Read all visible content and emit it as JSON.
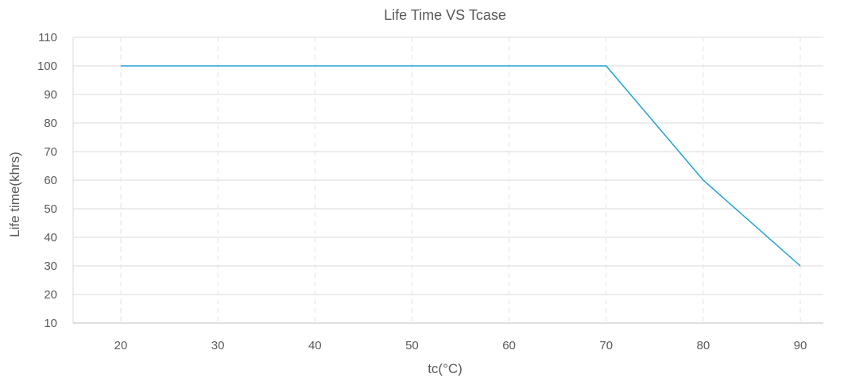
{
  "chart_data": {
    "type": "line",
    "title": "Life Time VS Tcase",
    "xlabel": "tc(°C)",
    "ylabel": "Life time(khrs)",
    "x": [
      20,
      30,
      40,
      50,
      60,
      70,
      80,
      90
    ],
    "series": [
      {
        "values": [
          100,
          100,
          100,
          100,
          100,
          100,
          60,
          30
        ],
        "color": "#1fa2d6"
      }
    ],
    "xticks": [
      "20",
      "30",
      "40",
      "50",
      "60",
      "70",
      "80",
      "90"
    ],
    "yticks": [
      "10",
      "20",
      "30",
      "40",
      "50",
      "60",
      "70",
      "80",
      "90",
      "100",
      "110"
    ],
    "ylim": [
      10,
      110
    ],
    "grid": {
      "horizontal": true,
      "vertical_dashed": true
    },
    "legend": "none"
  }
}
